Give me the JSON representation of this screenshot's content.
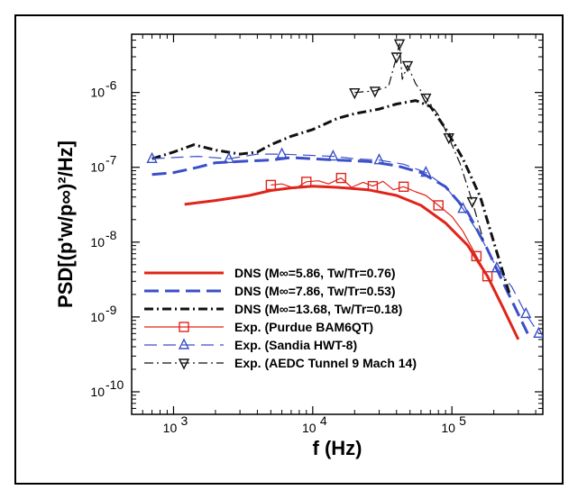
{
  "chart_data": {
    "type": "line",
    "title": "",
    "xlabel": "f (Hz)",
    "ylabel": "PSD[(p'w/p∞)²/Hz]",
    "xscale": "log",
    "yscale": "log",
    "xlim": [
      500,
      450000
    ],
    "ylim": [
      5e-11,
      6e-06
    ],
    "xticks": [
      {
        "value": 1000,
        "base": "10",
        "exp": "3"
      },
      {
        "value": 10000,
        "base": "10",
        "exp": "4"
      },
      {
        "value": 100000,
        "base": "10",
        "exp": "5"
      }
    ],
    "yticks": [
      {
        "value": 1e-10,
        "base": "10",
        "exp": "-10"
      },
      {
        "value": 1e-09,
        "base": "10",
        "exp": "-9"
      },
      {
        "value": 1e-08,
        "base": "10",
        "exp": "-8"
      },
      {
        "value": 1e-07,
        "base": "10",
        "exp": "-7"
      },
      {
        "value": 1e-06,
        "base": "10",
        "exp": "-6"
      }
    ],
    "grid": false,
    "legend_position": "bottom-left",
    "series": [
      {
        "name": "DNS (M∞=5.86, Tw/Tr=0.76)",
        "color": "#e0241b",
        "dash": "",
        "width": 3,
        "marker": "none",
        "x": [
          1200,
          2000,
          3500,
          5000,
          7000,
          10000,
          15000,
          25000,
          40000,
          60000,
          90000,
          130000,
          180000,
          230000,
          300000
        ],
        "y": [
          3.2e-08,
          3.6e-08,
          4.2e-08,
          4.9e-08,
          5.3e-08,
          5.6e-08,
          5.4e-08,
          5e-08,
          4.2e-08,
          3.1e-08,
          1.8e-08,
          9e-09,
          3.5e-09,
          1.4e-09,
          5e-10
        ]
      },
      {
        "name": "DNS (M∞=7.86, Tw/Tr=0.53)",
        "color": "#3a4fc8",
        "dash": "16,7",
        "width": 3,
        "marker": "none",
        "x": [
          700,
          1000,
          1500,
          2000,
          3000,
          5000,
          7000,
          10000,
          15000,
          25000,
          40000,
          60000,
          90000,
          130000,
          180000,
          250000,
          350000
        ],
        "y": [
          8e-08,
          8.5e-08,
          1e-07,
          1.15e-07,
          1.2e-07,
          1.25e-07,
          1.35e-07,
          1.3e-07,
          1.25e-07,
          1.2e-07,
          1.05e-07,
          8.5e-08,
          5.5e-08,
          2.5e-08,
          8e-09,
          2.2e-09,
          6e-10
        ]
      },
      {
        "name": "DNS (M∞=13.68, Tw/Tr=0.18)",
        "color": "#111111",
        "dash": "10,4,2,4",
        "width": 3,
        "marker": "none",
        "x": [
          700,
          1000,
          1400,
          2000,
          3000,
          4000,
          5000,
          7000,
          10000,
          15000,
          20000,
          30000,
          40000,
          55000,
          70000,
          90000,
          120000,
          160000,
          200000,
          260000
        ],
        "y": [
          1.3e-07,
          1.6e-07,
          2e-07,
          1.7e-07,
          1.5e-07,
          1.6e-07,
          2e-07,
          2.6e-07,
          3.2e-07,
          4.5e-07,
          5.2e-07,
          6e-07,
          7e-07,
          7.8e-07,
          6.5e-07,
          3.3e-07,
          1.3e-07,
          4e-08,
          1e-08,
          2e-09
        ]
      },
      {
        "name": "Exp. (Purdue BAM6QT)",
        "color": "#e0241b",
        "dash": "",
        "width": 1.2,
        "marker": "square",
        "x": [
          5000,
          6000,
          7500,
          9000,
          11000,
          13000,
          16000,
          19000,
          23000,
          27000,
          32000,
          38000,
          45000,
          55000,
          65000,
          80000,
          100000,
          120000,
          150000,
          180000
        ],
        "y": [
          5.8e-08,
          6e-08,
          5.2e-08,
          6.4e-08,
          6.6e-08,
          6e-08,
          7.2e-08,
          5.4e-08,
          6.3e-08,
          5.6e-08,
          6.5e-08,
          5e-08,
          5.5e-08,
          4.7e-08,
          4.2e-08,
          3.1e-08,
          2.2e-08,
          1.4e-08,
          6.5e-09,
          3.5e-09
        ],
        "marker_x": [
          5000,
          9000,
          16000,
          27000,
          45000,
          80000,
          150000,
          180000
        ],
        "marker_y": [
          5.8e-08,
          6.4e-08,
          7.2e-08,
          5.6e-08,
          5.5e-08,
          3.1e-08,
          6.5e-09,
          3.5e-09
        ]
      },
      {
        "name": "Exp. (Sandia HWT-8)",
        "color": "#3a4fc8",
        "dash": "14,7",
        "width": 1.2,
        "marker": "triangle",
        "x": [
          700,
          1000,
          1500,
          2500,
          4000,
          6000,
          9000,
          14000,
          20000,
          30000,
          45000,
          65000,
          90000,
          120000,
          160000,
          210000,
          270000,
          340000,
          420000
        ],
        "y": [
          1.3e-07,
          1.35e-07,
          1.4e-07,
          1.3e-07,
          1.5e-07,
          1.5e-07,
          1.45e-07,
          1.4e-07,
          1.3e-07,
          1.25e-07,
          1.1e-07,
          8.5e-08,
          5.5e-08,
          2.8e-08,
          1.2e-08,
          4.5e-09,
          2.5e-09,
          1.1e-09,
          6e-10
        ],
        "marker_x": [
          700,
          2500,
          6000,
          14000,
          30000,
          65000,
          120000,
          210000,
          340000,
          420000
        ],
        "marker_y": [
          1.3e-07,
          1.3e-07,
          1.5e-07,
          1.4e-07,
          1.25e-07,
          8.5e-08,
          2.8e-08,
          4.5e-09,
          1.1e-09,
          6e-10
        ]
      },
      {
        "name": "Exp. (AEDC Tunnel 9 Mach 14)",
        "color": "#111111",
        "dash": "10,4,2,4",
        "width": 1.2,
        "marker": "triangle-down",
        "x": [
          20000,
          28000,
          35000,
          40000,
          42000,
          44000,
          48000,
          55000,
          65000,
          80000,
          95000,
          115000,
          140000,
          170000
        ],
        "y": [
          1e-06,
          1.05e-06,
          1.2e-06,
          3e-06,
          4.5e-06,
          1.5e-06,
          2.3e-06,
          1.3e-06,
          8.5e-07,
          5e-07,
          2.5e-07,
          1.1e-07,
          3.5e-08,
          1e-08
        ],
        "marker_x": [
          20000,
          28000,
          40000,
          42000,
          48000,
          65000,
          95000,
          140000
        ],
        "marker_y": [
          1e-06,
          1.05e-06,
          3e-06,
          4.5e-06,
          2.3e-06,
          8.5e-07,
          2.5e-07,
          3.5e-08
        ]
      }
    ]
  }
}
